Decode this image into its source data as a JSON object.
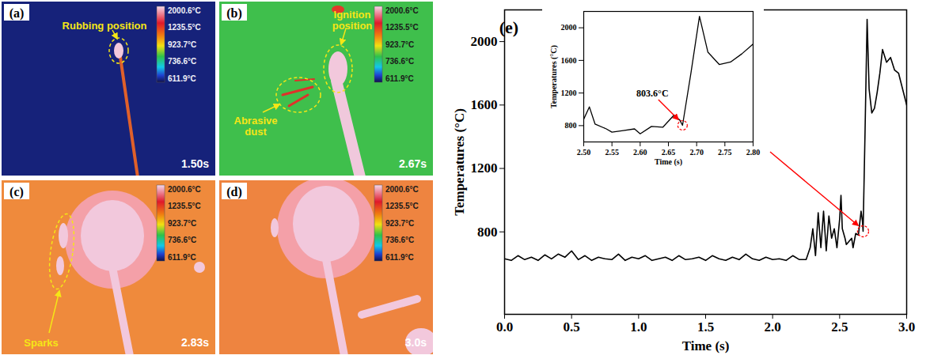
{
  "colorbar_ticks": [
    {
      "value": 2000.6,
      "label": "2000.6°C"
    },
    {
      "value": 1235.5,
      "label": "1235.5°C"
    },
    {
      "value": 923.7,
      "label": "923.7°C"
    },
    {
      "value": 736.6,
      "label": "736.6°C"
    },
    {
      "value": 611.9,
      "label": "611.9°C"
    }
  ],
  "images": [
    {
      "label": "(a)",
      "time": "1.50s",
      "color": "#16227a",
      "annotations": [
        "Rubbing position"
      ]
    },
    {
      "label": "(b)",
      "time": "2.67s",
      "color": "#3fbf4c",
      "annotations": [
        "Ignition position",
        "Abrasive dust"
      ]
    },
    {
      "label": "(c)",
      "time": "2.83s",
      "color": "#ef8a3c",
      "annotations": [
        "Sparks"
      ]
    },
    {
      "label": "(d)",
      "time": "3.0s",
      "color": "#ee8440",
      "annotations": []
    }
  ],
  "chart_data": {
    "type": "line",
    "label": "(e)",
    "x_label": "Time (s)",
    "y_label": "Temperatures (°C)",
    "color": "#000000",
    "xlim": [
      0,
      3
    ],
    "ylim": [
      280,
      2200
    ],
    "xticks": [
      {
        "value": 0,
        "label": "0.0"
      },
      0.5,
      {
        "value": 1,
        "label": "1.0"
      },
      1.5,
      {
        "value": 2,
        "label": "2.0"
      },
      2.5,
      {
        "value": 3,
        "label": "3.0"
      }
    ],
    "yticks": [
      800,
      1200,
      1600,
      2000
    ],
    "x": [
      0,
      0.05,
      0.1,
      0.15,
      0.2,
      0.25,
      0.3,
      0.35,
      0.4,
      0.45,
      0.5,
      0.55,
      0.6,
      0.65,
      0.7,
      0.75,
      0.8,
      0.85,
      0.9,
      0.95,
      1,
      1.05,
      1.1,
      1.15,
      1.2,
      1.25,
      1.3,
      1.35,
      1.4,
      1.45,
      1.5,
      1.55,
      1.6,
      1.65,
      1.7,
      1.75,
      1.8,
      1.85,
      1.9,
      1.95,
      2,
      2.05,
      2.1,
      2.15,
      2.2,
      2.25,
      2.28,
      2.3,
      2.32,
      2.34,
      2.36,
      2.38,
      2.4,
      2.42,
      2.44,
      2.46,
      2.48,
      2.5,
      2.51,
      2.52,
      2.54,
      2.55,
      2.57,
      2.59,
      2.6,
      2.62,
      2.64,
      2.66,
      2.67,
      2.675,
      2.69,
      2.705,
      2.72,
      2.74,
      2.76,
      2.78,
      2.8,
      2.82,
      2.85,
      2.88,
      2.91,
      2.94,
      2.97,
      3
    ],
    "values": [
      630,
      620,
      650,
      625,
      640,
      620,
      655,
      630,
      660,
      640,
      680,
      625,
      650,
      620,
      640,
      630,
      625,
      660,
      620,
      640,
      630,
      650,
      620,
      630,
      640,
      620,
      650,
      625,
      630,
      640,
      620,
      650,
      630,
      620,
      640,
      625,
      660,
      630,
      620,
      640,
      625,
      630,
      620,
      650,
      625,
      625,
      700,
      820,
      650,
      920,
      700,
      930,
      680,
      900,
      760,
      820,
      700,
      880,
      1030,
      820,
      760,
      720,
      740,
      760,
      700,
      790,
      780,
      930,
      870,
      803.6,
      1450,
      2140,
      1700,
      1550,
      1580,
      1680,
      1800,
      1950,
      1870,
      1900,
      1820,
      1800,
      1700,
      1600
    ],
    "inset": {
      "x_label": "Time (s)",
      "y_label": "Temperatures (°C)",
      "xlim": [
        2.5,
        2.8
      ],
      "ylim": [
        600,
        2200
      ],
      "xticks": [
        {
          "value": 2.5,
          "label": "2.50"
        },
        2.55,
        {
          "value": 2.6,
          "label": "2.60"
        },
        2.65,
        {
          "value": 2.7,
          "label": "2.70"
        },
        2.75,
        {
          "value": 2.8,
          "label": "2.80"
        }
      ],
      "yticks": [
        800,
        1200,
        1600,
        2000
      ],
      "annotations": [
        {
          "text": "803.6°C",
          "x": 2.675,
          "y": 803.6
        }
      ]
    }
  }
}
